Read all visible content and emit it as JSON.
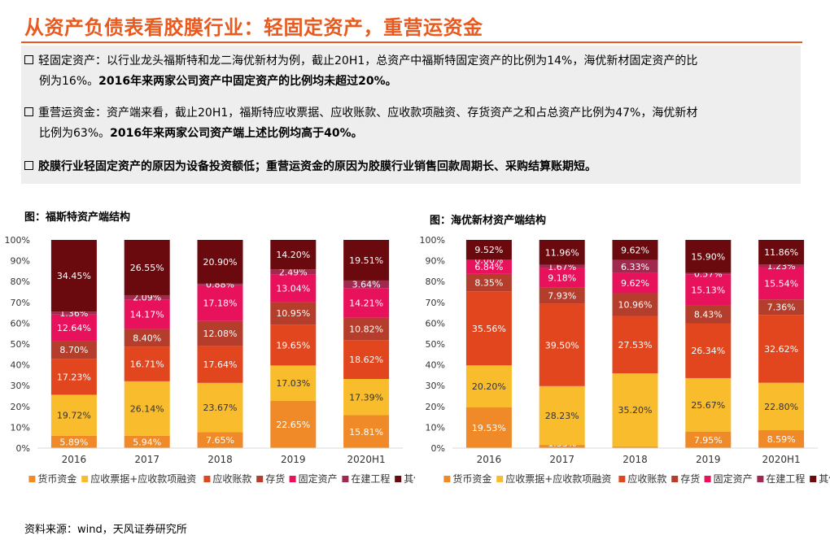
{
  "title": "从资产负债表看胶膜行业：轻固定资产，重营运资金",
  "bullets": [
    {
      "line1": "轻固定资产：以行业龙头福斯特和龙二海优新材为例，截止20H1，总资产中福斯特固定资产的比例为14%，海优新材固定资产的比",
      "line2_normal": "例为16%。",
      "line2_bold": "2016年来两家公司资产中固定资产的比例均未超过20%。"
    },
    {
      "line1": "重营运资金：资产端来看，截止20H1，福斯特应收票据、应收账款、应收款项融资、存货资产之和占总资产比例为47%，海优新材",
      "line2_normal": "比例为63%。",
      "line2_bold": "2016年来两家公司资产端上述比例均高于40%。"
    },
    {
      "line1_bold": "胶膜行业轻固定资产的原因为设备投资额低；重营运资金的原因为胶膜行业销售回款周期长、采购结算账期短。"
    }
  ],
  "chart_titles": [
    "图：福斯特资产端结构",
    "图：海优新材资产端结构"
  ],
  "source": "资料来源：wind，天风证券研究所",
  "colors": {
    "货币资金": "#f08a28",
    "应收票据+应收款项融资": "#f9bc2c",
    "应收账款": "#e2461f",
    "存货": "#b43d2b",
    "固定资产": "#e8115b",
    "在建工程": "#a1284f",
    "其他": "#6b0a0e"
  },
  "chart_data": [
    {
      "type": "bar",
      "stacked": true,
      "title": "图：福斯特资产端结构",
      "categories": [
        "2016",
        "2017",
        "2018",
        "2019",
        "2020H1"
      ],
      "y_ticks": [
        "0%",
        "10%",
        "20%",
        "30%",
        "40%",
        "50%",
        "60%",
        "70%",
        "80%",
        "90%",
        "100%"
      ],
      "ylim": [
        0,
        100
      ],
      "legend_position": "bottom",
      "series": [
        {
          "name": "货币资金",
          "values": [
            5.89,
            5.94,
            7.65,
            22.65,
            15.81
          ],
          "labels": [
            "5.89%",
            "5.94%",
            "7.65%",
            "22.65%",
            "15.81%"
          ]
        },
        {
          "name": "应收票据+应收款项融资",
          "values": [
            19.72,
            26.14,
            23.67,
            17.03,
            17.39
          ],
          "labels": [
            "19.72%",
            "26.14%",
            "23.67%",
            "17.03%",
            "17.39%"
          ]
        },
        {
          "name": "应收账款",
          "values": [
            17.23,
            16.71,
            17.64,
            19.65,
            18.62
          ],
          "labels": [
            "17.23%",
            "16.71%",
            "17.64%",
            "19.65%",
            "18.62%"
          ]
        },
        {
          "name": "存货",
          "values": [
            8.7,
            8.4,
            12.08,
            10.95,
            10.82
          ],
          "labels": [
            "8.70%",
            "8.40%",
            "12.08%",
            "10.95%",
            "10.82%"
          ]
        },
        {
          "name": "固定资产",
          "values": [
            12.64,
            14.17,
            17.18,
            13.04,
            14.21
          ],
          "labels": [
            "12.64%",
            "14.17%",
            "17.18%",
            "13.04%",
            "14.21%"
          ]
        },
        {
          "name": "在建工程",
          "values": [
            1.36,
            2.09,
            0.88,
            2.49,
            3.64
          ],
          "labels": [
            "1.36%",
            "2.09%",
            "0.88%",
            "2.49%",
            "3.64%"
          ]
        },
        {
          "name": "其他",
          "values": [
            34.45,
            26.55,
            20.9,
            14.2,
            19.51
          ],
          "labels": [
            "34.45%",
            "26.55%",
            "20.90%",
            "14.20%",
            "19.51%"
          ]
        }
      ]
    },
    {
      "type": "bar",
      "stacked": true,
      "title": "图：海优新材资产端结构",
      "categories": [
        "2016",
        "2017",
        "2018",
        "2019",
        "2020H1"
      ],
      "y_ticks": [
        "0%",
        "10%",
        "20%",
        "30%",
        "40%",
        "50%",
        "60%",
        "70%",
        "80%",
        "90%",
        "100%"
      ],
      "ylim": [
        0,
        100
      ],
      "legend_position": "bottom",
      "series": [
        {
          "name": "货币资金",
          "values": [
            19.53,
            1.53,
            0.73,
            7.95,
            8.59
          ],
          "labels": [
            "19.53%",
            "1.53%",
            "0.73%",
            "7.95%",
            "8.59%"
          ]
        },
        {
          "name": "应收票据+应收款项融资",
          "values": [
            20.2,
            28.23,
            35.2,
            25.67,
            22.8
          ],
          "labels": [
            "20.20%",
            "28.23%",
            "35.20%",
            "25.67%",
            "22.80%"
          ]
        },
        {
          "name": "应收账款",
          "values": [
            35.56,
            39.5,
            27.53,
            26.34,
            32.62
          ],
          "labels": [
            "35.56%",
            "39.50%",
            "27.53%",
            "26.34%",
            "32.62%"
          ]
        },
        {
          "name": "存货",
          "values": [
            8.35,
            7.93,
            10.96,
            8.43,
            7.36
          ],
          "labels": [
            "8.35%",
            "7.93%",
            "10.96%",
            "8.43%",
            "7.36%"
          ]
        },
        {
          "name": "固定资产",
          "values": [
            6.84,
            9.18,
            9.62,
            15.13,
            15.54
          ],
          "labels": [
            "6.84%",
            "9.18%",
            "9.62%",
            "15.13%",
            "15.54%"
          ]
        },
        {
          "name": "在建工程",
          "values": [
            0.0,
            1.67,
            6.33,
            0.57,
            1.23
          ],
          "labels": [
            "0.00%",
            "1.67%",
            "6.33%",
            "0.57%",
            "1.23%"
          ]
        },
        {
          "name": "其他",
          "values": [
            9.52,
            11.96,
            9.62,
            15.9,
            11.86
          ],
          "labels": [
            "9.52%",
            "11.96%",
            "9.62%",
            "15.90%",
            "11.86%"
          ]
        }
      ]
    }
  ]
}
